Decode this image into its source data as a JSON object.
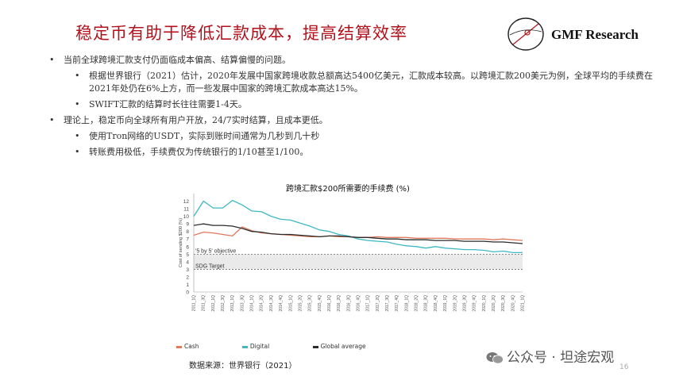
{
  "slide": {
    "title": "稳定币有助于降低汇款成本，提高结算效率",
    "brand": "GMF Research",
    "page_number": "16"
  },
  "bullets": [
    {
      "text": "当前全球跨境汇款支付仍面临成本偏高、结算偏慢的问题。",
      "level": 1
    },
    {
      "text": "根据世界银行（2021）估计，2020年发展中国家跨境收款总额高达5400亿美元，汇款成本较高。以跨境汇款200美元为例，全球平均的手续费在2021年处仍在6%上方，而一些发展中国家的跨境汇款成本高达15%。",
      "level": 2
    },
    {
      "text": "SWIFT汇款的结算时长往往需要1-4天。",
      "level": 2
    },
    {
      "text": "理论上，稳定币向全球所有用户开放，24/7实时结算，且成本更低。",
      "level": 1
    },
    {
      "text": "使用Tron网络的USDT，实际到账时间通常为几秒到几十秒",
      "level": 2
    },
    {
      "text": "转账费用极低，手续费仅为传统银行的1/10甚至1/100。",
      "level": 2
    }
  ],
  "source": "数据来源：世界银行（2021）",
  "watermark": "公众号 · 坦途宏观",
  "colors": {
    "title": "#b3121c",
    "cash": "#e07a5f",
    "digital": "#3fb8c4",
    "global": "#2b2b2b",
    "band": "#d9d9d9"
  },
  "chart_data": {
    "type": "line",
    "title": "跨境汇款$200所需要的手续费 (%)",
    "ylabel": "Cost of sending $200 (%)",
    "xlabel": "",
    "ylim": [
      0,
      13
    ],
    "yticks": [
      0,
      1,
      2,
      3,
      4,
      5,
      6,
      7,
      8,
      9,
      10,
      11,
      12
    ],
    "grid": false,
    "legend_position": "bottom",
    "categories": [
      "2011_1Q",
      "2011_3Q",
      "2012_1Q",
      "2012_3Q",
      "2013_1Q",
      "2013_3Q",
      "2014_1Q",
      "2014_2Q",
      "2014_3Q",
      "2014_4Q",
      "2015_1Q",
      "2015_2Q",
      "2015_3Q",
      "2015_4Q",
      "2016_1Q",
      "2016_2Q",
      "2016_3Q",
      "2016_4Q",
      "2017_1Q",
      "2017_2Q",
      "2017_3Q",
      "2017_4Q",
      "2018_1Q",
      "2018_2Q",
      "2018_3Q",
      "2018_4Q",
      "2019_1Q",
      "2019_2Q",
      "2019_3Q",
      "2019_4Q",
      "2020_1Q",
      "2020_2Q",
      "2020_3Q",
      "2020_4Q",
      "2021_1Q"
    ],
    "series": [
      {
        "name": "Cash",
        "color": "#e07a5f",
        "values": [
          7.5,
          7.9,
          7.8,
          7.6,
          7.4,
          8.6,
          8.1,
          7.8,
          7.7,
          7.6,
          7.5,
          7.4,
          7.3,
          7.3,
          7.4,
          7.3,
          7.3,
          7.2,
          7.2,
          7.3,
          7.2,
          7.2,
          7.2,
          7.1,
          7.1,
          7.1,
          7.1,
          7.0,
          7.0,
          7.0,
          7.0,
          6.9,
          7.0,
          6.9,
          6.8
        ]
      },
      {
        "name": "Digital",
        "color": "#3fb8c4",
        "values": [
          10.0,
          12.0,
          11.1,
          11.1,
          12.1,
          11.5,
          10.7,
          10.6,
          10.0,
          9.6,
          9.5,
          9.1,
          8.7,
          8.2,
          8.0,
          7.6,
          7.4,
          7.0,
          6.8,
          6.7,
          6.6,
          6.3,
          6.1,
          6.0,
          5.8,
          6.0,
          5.8,
          5.7,
          5.6,
          5.6,
          5.5,
          5.3,
          5.4,
          5.2,
          5.2
        ]
      },
      {
        "name": "Global average",
        "color": "#2b2b2b",
        "values": [
          8.8,
          9.0,
          8.8,
          8.8,
          8.7,
          8.4,
          8.0,
          7.9,
          7.7,
          7.6,
          7.6,
          7.5,
          7.4,
          7.3,
          7.4,
          7.4,
          7.3,
          7.2,
          7.2,
          7.1,
          7.0,
          7.0,
          6.9,
          6.9,
          6.9,
          6.8,
          6.8,
          6.8,
          6.7,
          6.7,
          6.7,
          6.6,
          6.6,
          6.5,
          6.4
        ]
      }
    ],
    "annotations": [
      {
        "label": "'5 by 5' objective",
        "y": 5
      },
      {
        "label": "SDG Target",
        "y": 3
      }
    ]
  }
}
